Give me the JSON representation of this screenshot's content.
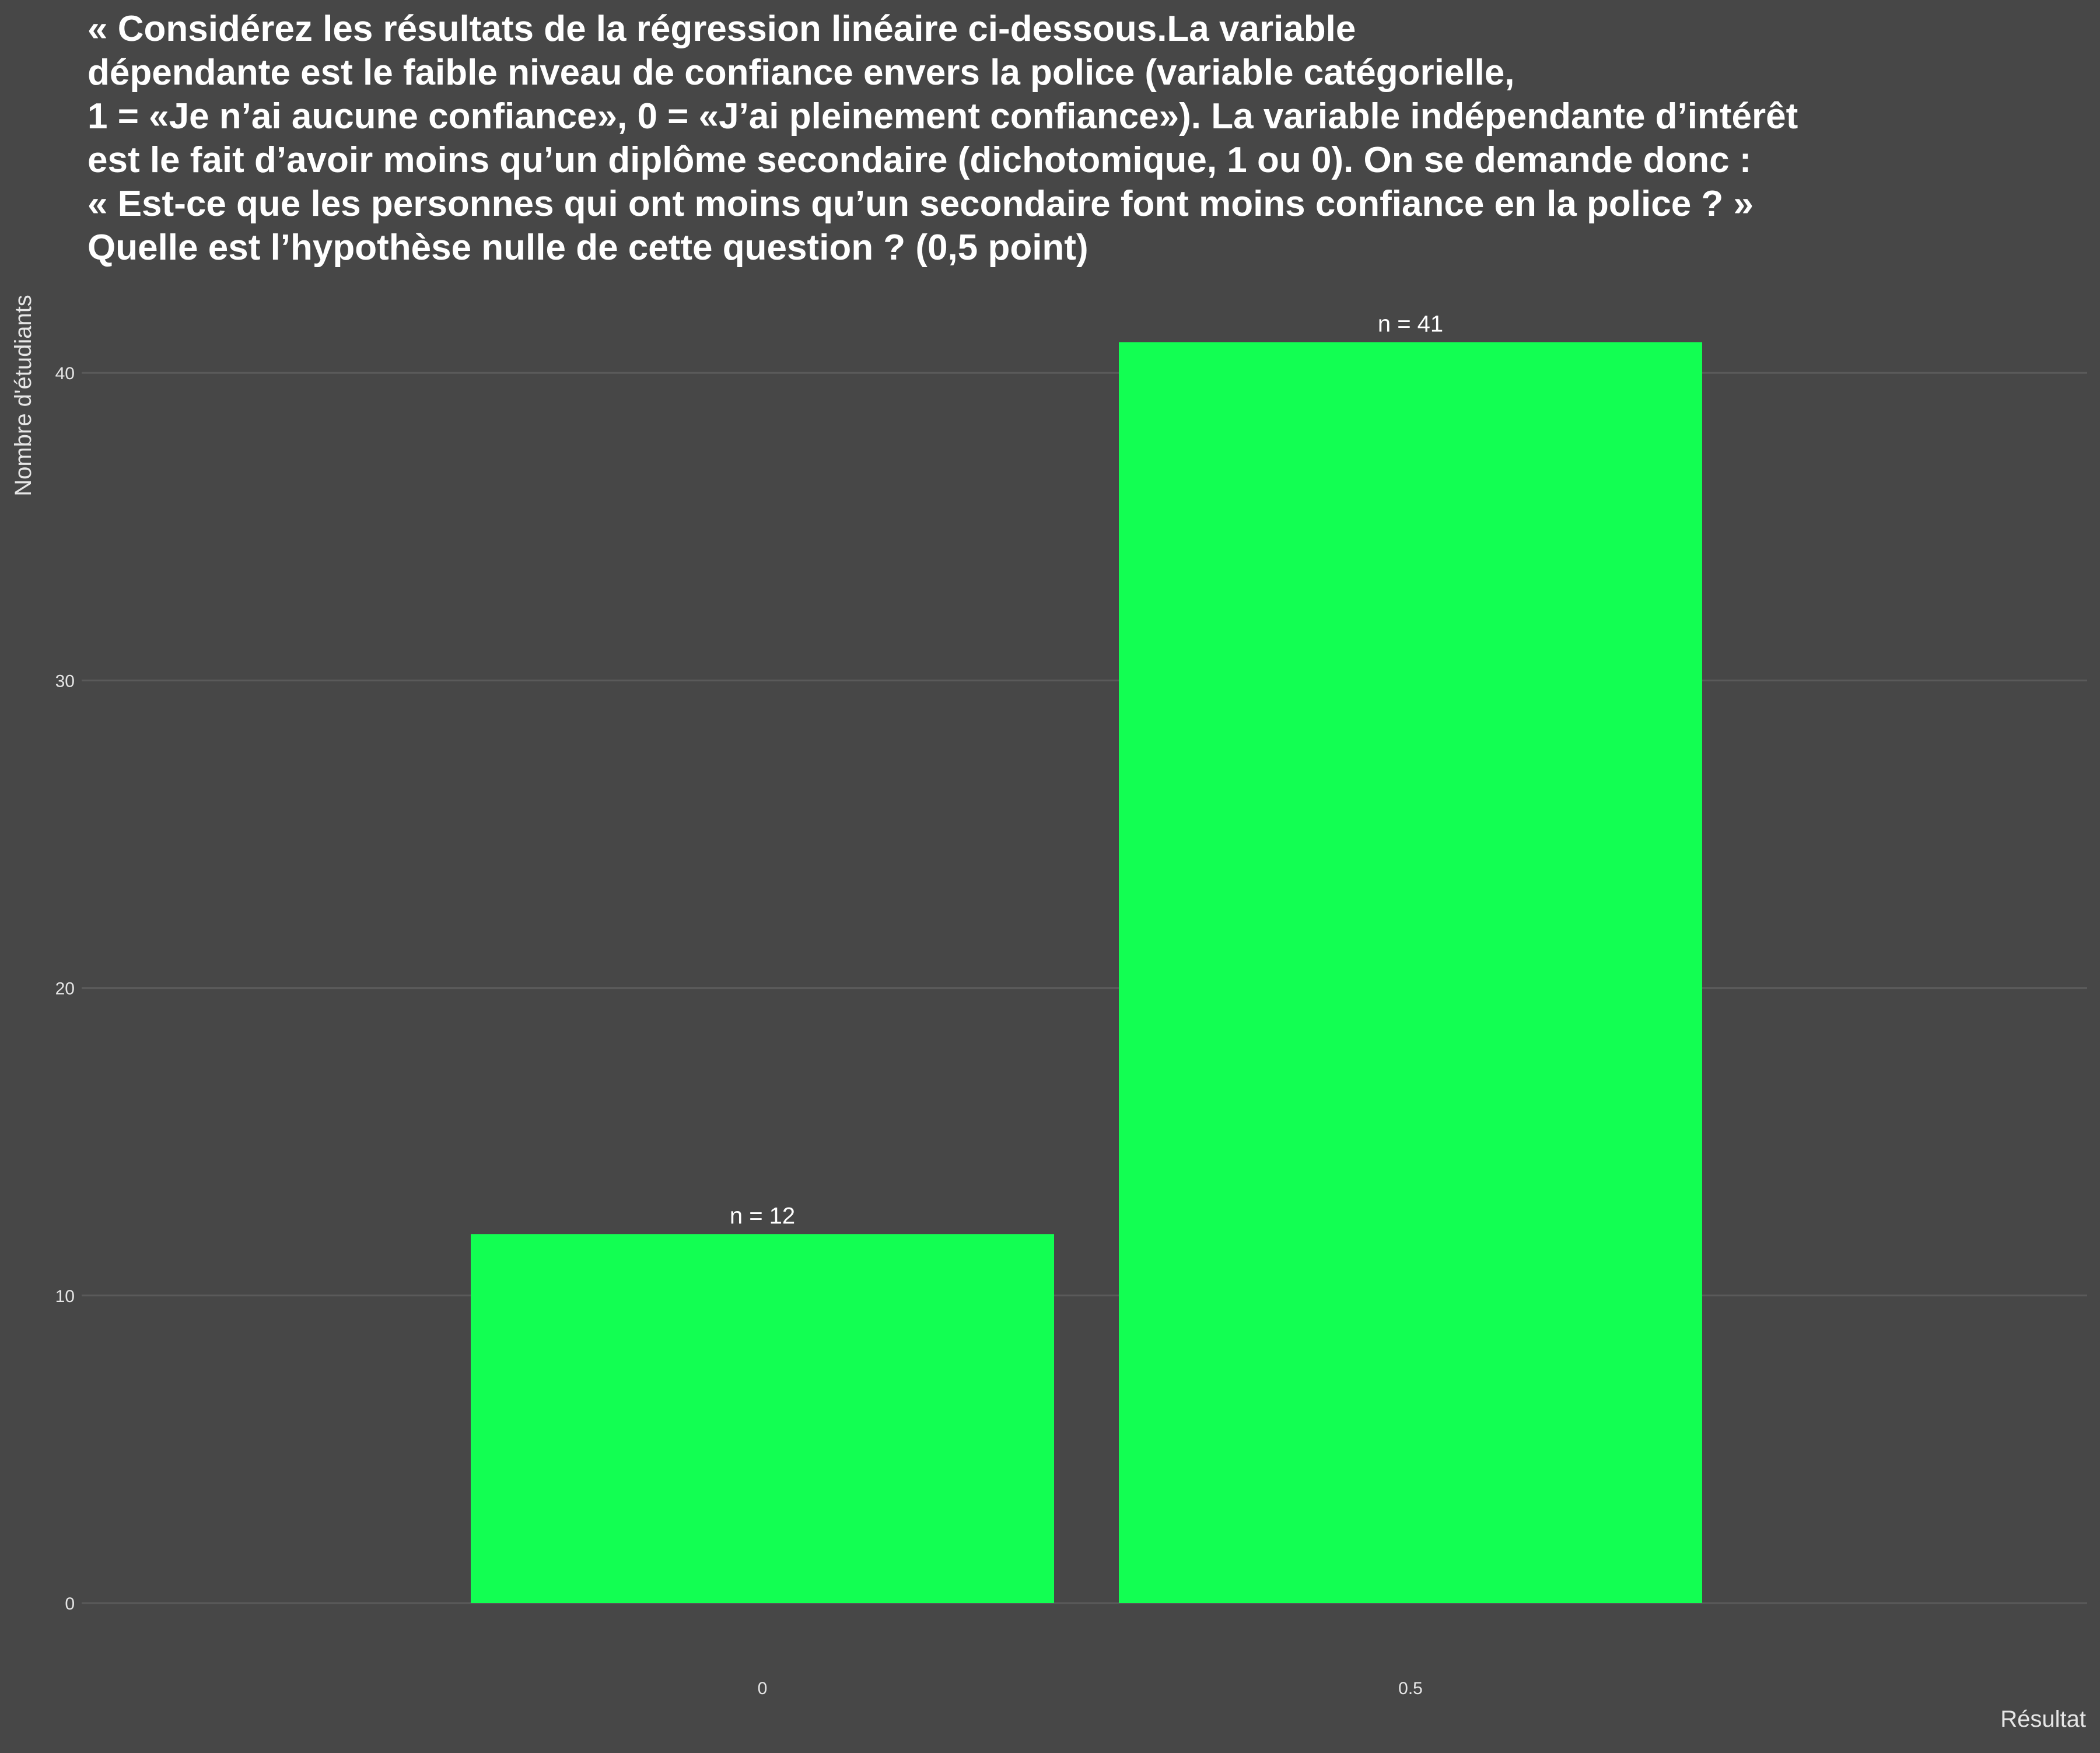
{
  "chart_data": {
    "type": "bar",
    "title_lines": [
      "« Considérez les résultats de la régression linéaire ci-dessous.La variable",
      "dépendante est le faible niveau de confiance envers la police (variable catégorielle,",
      "1 = «Je n’ai aucune confiance», 0 = «J’ai pleinement confiance»). La variable indépendante d’intérêt",
      "est le fait d’avoir moins qu’un diplôme secondaire (dichotomique, 1 ou 0). On se demande donc :",
      "« Est-ce que les personnes qui ont moins qu’un secondaire font moins confiance en la police ? »",
      "Quelle est l’hypothèse nulle de cette question ? (0,5 point)"
    ],
    "categories": [
      "0",
      "0.5"
    ],
    "values": [
      12,
      41
    ],
    "data_labels": [
      "n = 12",
      "n = 41"
    ],
    "xlabel": "Résultat",
    "ylabel": "Nombre d'étudiants",
    "ylim": [
      0,
      41
    ],
    "yticks": [
      0,
      10,
      20,
      30,
      40
    ],
    "bar_color": "#12ff52",
    "background_color": "#474747",
    "grid": true
  }
}
